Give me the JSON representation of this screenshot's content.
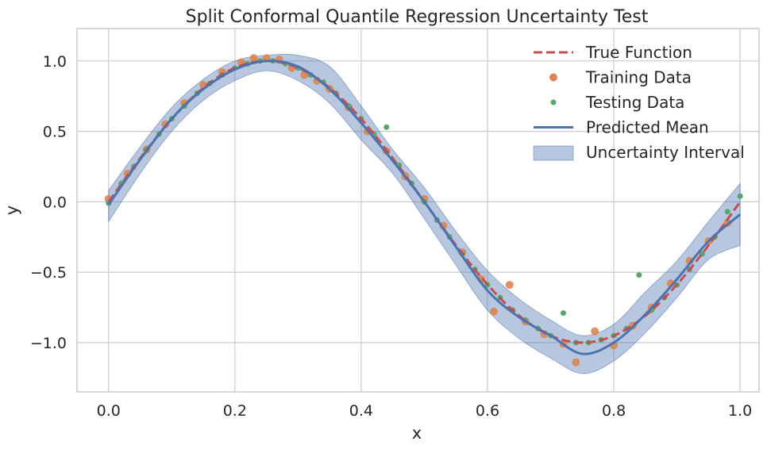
{
  "chart_data": {
    "type": "scatter",
    "title": "Split Conformal Quantile Regression Uncertainty Test",
    "xlabel": "x",
    "ylabel": "y",
    "xlim": [
      -0.05,
      1.03
    ],
    "ylim": [
      -1.35,
      1.23
    ],
    "xticks": [
      0.0,
      0.2,
      0.4,
      0.6,
      0.8,
      1.0
    ],
    "xtick_labels": [
      "0.0",
      "0.2",
      "0.4",
      "0.6",
      "0.8",
      "1.0"
    ],
    "yticks": [
      -1.0,
      -0.5,
      0.0,
      0.5,
      1.0
    ],
    "ytick_labels": [
      "−1.0",
      "−0.5",
      "0.0",
      "0.5",
      "1.0"
    ],
    "grid": true,
    "legend_position": "top-right",
    "colors": {
      "true_function": "#c44e52",
      "training": "#dd8452",
      "testing": "#55a868",
      "predicted": "#4c72b0",
      "interval": "#4c72b0"
    },
    "legend": [
      {
        "key": "true_function",
        "label": "True Function"
      },
      {
        "key": "training",
        "label": "Training Data"
      },
      {
        "key": "testing",
        "label": "Testing Data"
      },
      {
        "key": "predicted",
        "label": "Predicted Mean"
      },
      {
        "key": "interval",
        "label": "Uncertainty Interval"
      }
    ],
    "true_function": {
      "name": "True Function",
      "x": [
        0.0,
        0.05,
        0.1,
        0.15,
        0.2,
        0.25,
        0.3,
        0.35,
        0.4,
        0.45,
        0.5,
        0.55,
        0.6,
        0.65,
        0.7,
        0.75,
        0.8,
        0.85,
        0.9,
        0.95,
        1.0
      ],
      "y": [
        0.0,
        0.309,
        0.588,
        0.809,
        0.951,
        1.0,
        0.951,
        0.809,
        0.588,
        0.309,
        0.0,
        -0.309,
        -0.588,
        -0.809,
        -0.951,
        -1.0,
        -0.951,
        -0.809,
        -0.588,
        -0.309,
        0.0
      ]
    },
    "predicted_mean": {
      "name": "Predicted Mean",
      "x": [
        0.0,
        0.05,
        0.1,
        0.15,
        0.2,
        0.25,
        0.3,
        0.35,
        0.4,
        0.45,
        0.5,
        0.55,
        0.6,
        0.65,
        0.7,
        0.75,
        0.8,
        0.85,
        0.9,
        0.95,
        1.0
      ],
      "y": [
        -0.02,
        0.3,
        0.59,
        0.8,
        0.94,
        1.0,
        0.96,
        0.8,
        0.56,
        0.29,
        0.0,
        -0.32,
        -0.63,
        -0.82,
        -0.95,
        -1.08,
        -1.0,
        -0.8,
        -0.55,
        -0.28,
        -0.09
      ]
    },
    "interval": {
      "name": "Uncertainty Interval",
      "x": [
        0.0,
        0.05,
        0.1,
        0.15,
        0.2,
        0.25,
        0.3,
        0.35,
        0.4,
        0.45,
        0.5,
        0.55,
        0.6,
        0.65,
        0.7,
        0.75,
        0.8,
        0.85,
        0.9,
        0.95,
        1.0
      ],
      "lower": [
        -0.14,
        0.2,
        0.5,
        0.72,
        0.86,
        0.93,
        0.86,
        0.7,
        0.44,
        0.2,
        -0.12,
        -0.45,
        -0.77,
        -0.97,
        -1.11,
        -1.22,
        -1.13,
        -0.93,
        -0.68,
        -0.41,
        -0.31
      ],
      "upper": [
        0.08,
        0.39,
        0.67,
        0.87,
        1.0,
        1.04,
        1.04,
        0.96,
        0.68,
        0.37,
        0.1,
        -0.21,
        -0.49,
        -0.69,
        -0.84,
        -0.95,
        -0.87,
        -0.64,
        -0.42,
        -0.14,
        0.13
      ]
    },
    "training": {
      "name": "Training Data",
      "x": [
        0.0,
        0.03,
        0.06,
        0.09,
        0.12,
        0.15,
        0.18,
        0.21,
        0.23,
        0.25,
        0.27,
        0.29,
        0.31,
        0.33,
        0.35,
        0.38,
        0.41,
        0.44,
        0.47,
        0.5,
        0.53,
        0.56,
        0.59,
        0.61,
        0.635,
        0.66,
        0.69,
        0.72,
        0.74,
        0.77,
        0.8,
        0.83,
        0.86,
        0.89,
        0.92,
        0.95,
        0.98
      ],
      "y": [
        0.02,
        0.2,
        0.37,
        0.55,
        0.7,
        0.83,
        0.92,
        0.99,
        1.02,
        1.02,
        1.01,
        0.95,
        0.9,
        0.86,
        0.8,
        0.67,
        0.5,
        0.36,
        0.18,
        0.02,
        -0.17,
        -0.36,
        -0.55,
        -0.78,
        -0.59,
        -0.85,
        -0.94,
        -1.01,
        -1.14,
        -0.92,
        -1.02,
        -0.88,
        -0.75,
        -0.58,
        -0.42,
        -0.28,
        -0.15
      ]
    },
    "testing": {
      "name": "Testing Data",
      "x": [
        0.0,
        0.02,
        0.04,
        0.06,
        0.08,
        0.1,
        0.12,
        0.14,
        0.16,
        0.18,
        0.2,
        0.22,
        0.24,
        0.26,
        0.28,
        0.3,
        0.32,
        0.34,
        0.36,
        0.38,
        0.4,
        0.42,
        0.44,
        0.46,
        0.48,
        0.5,
        0.52,
        0.54,
        0.56,
        0.58,
        0.6,
        0.62,
        0.64,
        0.66,
        0.68,
        0.7,
        0.72,
        0.74,
        0.76,
        0.78,
        0.8,
        0.82,
        0.84,
        0.86,
        0.88,
        0.9,
        0.92,
        0.94,
        0.96,
        0.98,
        1.0
      ],
      "y": [
        -0.01,
        0.13,
        0.25,
        0.37,
        0.48,
        0.59,
        0.68,
        0.77,
        0.84,
        0.9,
        0.95,
        0.98,
        1.0,
        1.0,
        0.98,
        0.95,
        0.9,
        0.85,
        0.77,
        0.68,
        0.59,
        0.48,
        0.53,
        0.26,
        0.13,
        0.0,
        -0.13,
        -0.25,
        -0.37,
        -0.48,
        -0.59,
        -0.68,
        -0.77,
        -0.84,
        -0.9,
        -0.95,
        -0.79,
        -1.0,
        -1.0,
        -0.98,
        -0.95,
        -0.9,
        -0.52,
        -0.77,
        -0.68,
        -0.59,
        -0.48,
        -0.37,
        -0.25,
        -0.07,
        0.04
      ]
    }
  }
}
